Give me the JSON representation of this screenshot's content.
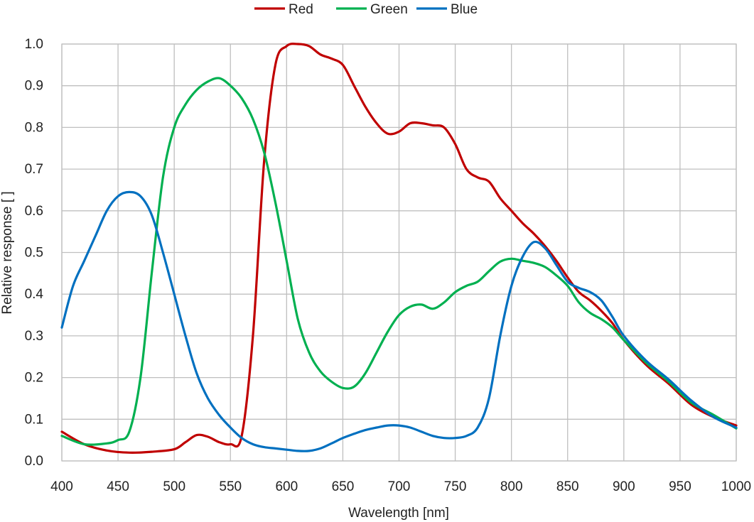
{
  "chart_data": {
    "type": "line",
    "xlabel": "Wavelength [nm]",
    "ylabel": "Relative response [ ]",
    "xlim": [
      400,
      1000
    ],
    "ylim": [
      0.0,
      1.0
    ],
    "x_ticks": [
      "400",
      "450",
      "500",
      "550",
      "600",
      "650",
      "700",
      "750",
      "800",
      "850",
      "900",
      "950",
      "1000"
    ],
    "y_ticks": [
      "0.0",
      "0.1",
      "0.2",
      "0.3",
      "0.4",
      "0.5",
      "0.6",
      "0.7",
      "0.8",
      "0.9",
      "1.0"
    ],
    "grid": true,
    "legend_position": "top-center",
    "series": [
      {
        "name": "Red",
        "color": "#c00000",
        "x": [
          400,
          420,
          440,
          460,
          480,
          500,
          510,
          520,
          530,
          540,
          550,
          560,
          570,
          580,
          590,
          600,
          610,
          620,
          630,
          640,
          650,
          660,
          670,
          680,
          690,
          700,
          710,
          720,
          730,
          740,
          750,
          760,
          770,
          780,
          790,
          800,
          810,
          820,
          830,
          840,
          850,
          860,
          870,
          880,
          890,
          900,
          920,
          940,
          960,
          980,
          1000
        ],
        "y": [
          0.07,
          0.04,
          0.025,
          0.02,
          0.022,
          0.028,
          0.045,
          0.062,
          0.058,
          0.045,
          0.04,
          0.06,
          0.3,
          0.72,
          0.95,
          0.995,
          1.0,
          0.995,
          0.975,
          0.965,
          0.95,
          0.9,
          0.85,
          0.81,
          0.785,
          0.79,
          0.81,
          0.81,
          0.805,
          0.8,
          0.76,
          0.7,
          0.68,
          0.67,
          0.63,
          0.6,
          0.57,
          0.545,
          0.515,
          0.48,
          0.44,
          0.405,
          0.385,
          0.36,
          0.33,
          0.29,
          0.23,
          0.185,
          0.135,
          0.105,
          0.085
        ]
      },
      {
        "name": "Green",
        "color": "#00b050",
        "x": [
          400,
          420,
          440,
          450,
          460,
          470,
          480,
          490,
          500,
          510,
          520,
          530,
          540,
          550,
          560,
          570,
          580,
          590,
          600,
          610,
          620,
          630,
          640,
          650,
          660,
          670,
          680,
          690,
          700,
          710,
          720,
          730,
          740,
          750,
          760,
          770,
          780,
          790,
          800,
          810,
          820,
          830,
          840,
          850,
          860,
          870,
          880,
          890,
          900,
          920,
          940,
          960,
          980,
          1000
        ],
        "y": [
          0.06,
          0.04,
          0.042,
          0.05,
          0.07,
          0.2,
          0.45,
          0.68,
          0.8,
          0.855,
          0.89,
          0.91,
          0.918,
          0.9,
          0.87,
          0.82,
          0.74,
          0.62,
          0.48,
          0.34,
          0.26,
          0.215,
          0.19,
          0.175,
          0.178,
          0.21,
          0.26,
          0.31,
          0.35,
          0.37,
          0.375,
          0.365,
          0.38,
          0.405,
          0.42,
          0.43,
          0.455,
          0.478,
          0.485,
          0.48,
          0.475,
          0.465,
          0.445,
          0.42,
          0.38,
          0.355,
          0.34,
          0.32,
          0.29,
          0.235,
          0.19,
          0.14,
          0.11,
          0.078
        ]
      },
      {
        "name": "Blue",
        "color": "#0070c0",
        "x": [
          400,
          410,
          420,
          430,
          440,
          450,
          460,
          470,
          480,
          490,
          500,
          510,
          520,
          530,
          540,
          550,
          560,
          570,
          580,
          590,
          600,
          610,
          620,
          630,
          640,
          650,
          660,
          670,
          680,
          690,
          700,
          710,
          720,
          730,
          740,
          750,
          760,
          770,
          780,
          790,
          800,
          810,
          820,
          830,
          840,
          850,
          860,
          870,
          880,
          890,
          900,
          920,
          940,
          960,
          980,
          1000
        ],
        "y": [
          0.32,
          0.42,
          0.48,
          0.54,
          0.6,
          0.635,
          0.645,
          0.635,
          0.59,
          0.5,
          0.4,
          0.3,
          0.21,
          0.15,
          0.11,
          0.08,
          0.055,
          0.04,
          0.033,
          0.03,
          0.027,
          0.024,
          0.024,
          0.03,
          0.042,
          0.055,
          0.065,
          0.074,
          0.08,
          0.085,
          0.085,
          0.08,
          0.07,
          0.06,
          0.055,
          0.055,
          0.06,
          0.08,
          0.15,
          0.3,
          0.42,
          0.49,
          0.525,
          0.51,
          0.47,
          0.43,
          0.415,
          0.405,
          0.385,
          0.345,
          0.3,
          0.24,
          0.195,
          0.145,
          0.105,
          0.08
        ]
      }
    ]
  }
}
